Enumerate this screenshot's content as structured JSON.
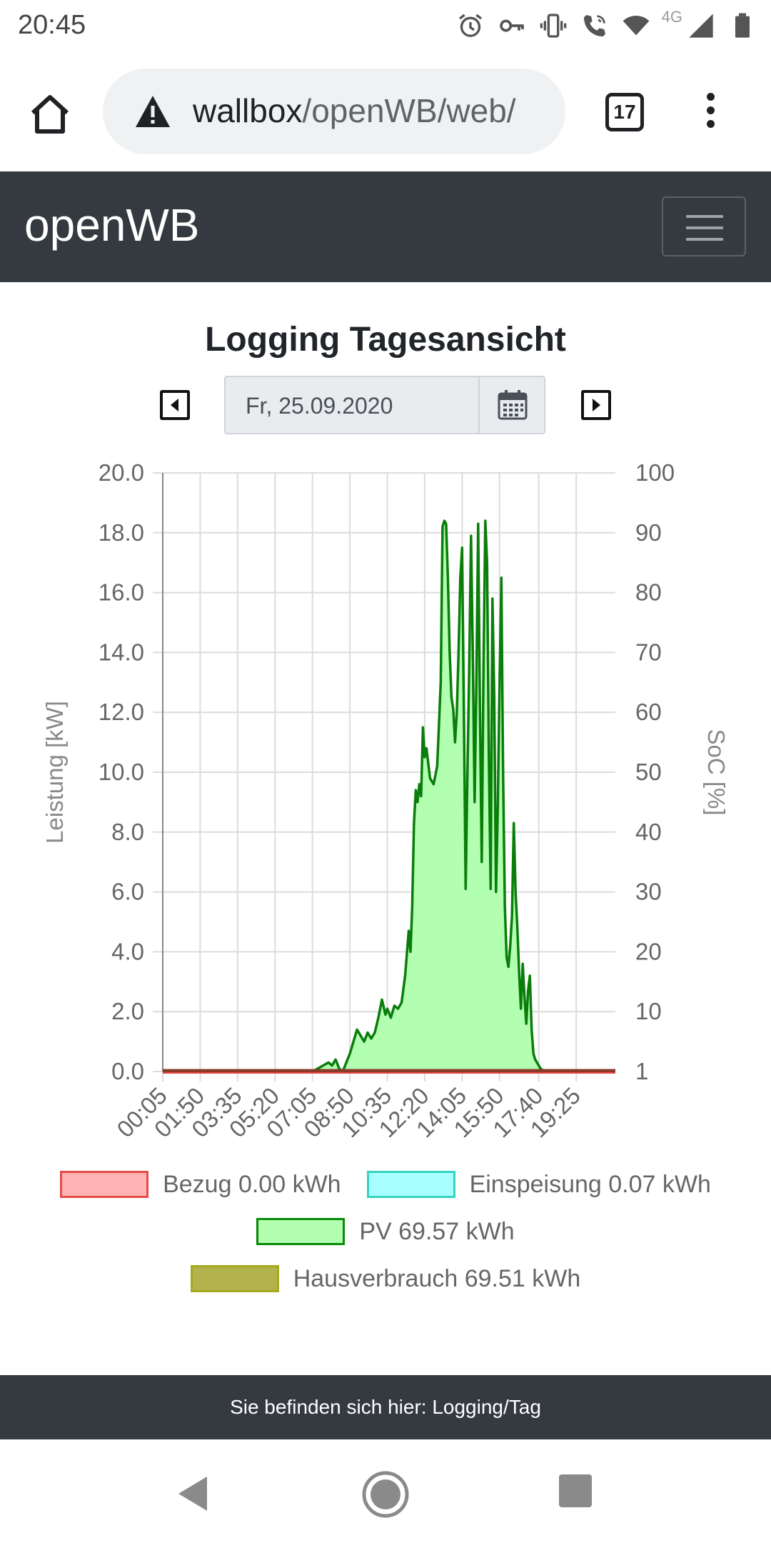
{
  "status_bar": {
    "time": "20:45",
    "network": "4G",
    "icons": [
      "alarm-icon",
      "vpn-key-icon",
      "vibrate-icon",
      "wifi-calling-icon",
      "wifi-icon",
      "signal-icon",
      "battery-icon"
    ]
  },
  "browser": {
    "url_host": "wallbox",
    "url_path": "/openWB/web/",
    "tab_count": "17",
    "security_icon": "warning-icon"
  },
  "navbar": {
    "brand": "openWB",
    "toggler_icon": "hamburger-menu-icon"
  },
  "page": {
    "title": "Logging Tagesansicht",
    "date": "Fr, 25.09.2020"
  },
  "chart_data": {
    "type": "line",
    "xlabel": "",
    "ylabel": "Leistung [kW]",
    "y2label": "SoC [%]",
    "ylim": [
      0,
      20
    ],
    "y2lim": [
      1,
      100
    ],
    "y_ticks": [
      "20.0",
      "18.0",
      "16.0",
      "14.0",
      "12.0",
      "10.0",
      "8.0",
      "6.0",
      "4.0",
      "2.0",
      "0.0"
    ],
    "y2_ticks": [
      "100",
      "90",
      "80",
      "70",
      "60",
      "50",
      "40",
      "30",
      "20",
      "10",
      "1"
    ],
    "x_ticks": [
      "00:05",
      "01:50",
      "03:35",
      "05:20",
      "07:05",
      "08:50",
      "10:35",
      "12:20",
      "14:05",
      "15:50",
      "17:40",
      "19:25"
    ],
    "grid": true,
    "legend_position": "bottom",
    "series": [
      {
        "name": "Bezug",
        "color": "#ff0000",
        "fill": "#ffb3b3",
        "x": [
          "00:05",
          "21:00"
        ],
        "values": [
          0.0,
          0.0
        ]
      },
      {
        "name": "Einspeisung",
        "color": "#00ffe1",
        "fill": "#a8ffff",
        "x": [
          "00:05",
          "21:00"
        ],
        "values": [
          0.0,
          0.0
        ]
      },
      {
        "name": "PV",
        "color": "#009900",
        "fill": "#b2ffb2",
        "x": [
          "07:05",
          "07:20",
          "07:35",
          "07:50",
          "08:00",
          "08:10",
          "08:20",
          "08:30",
          "08:40",
          "08:50",
          "09:00",
          "09:10",
          "09:20",
          "09:30",
          "09:40",
          "09:50",
          "10:00",
          "10:10",
          "10:20",
          "10:30",
          "10:35",
          "10:45",
          "10:55",
          "11:05",
          "11:15",
          "11:25",
          "11:35",
          "11:40",
          "11:45",
          "11:50",
          "11:55",
          "12:00",
          "12:05",
          "12:10",
          "12:15",
          "12:20",
          "12:25",
          "12:35",
          "12:45",
          "12:55",
          "13:05",
          "13:10",
          "13:15",
          "13:20",
          "13:25",
          "13:30",
          "13:35",
          "13:40",
          "13:45",
          "13:50",
          "13:55",
          "14:00",
          "14:05",
          "14:10",
          "14:15",
          "14:20",
          "14:25",
          "14:30",
          "14:35",
          "14:40",
          "14:45",
          "14:50",
          "14:55",
          "15:00",
          "15:05",
          "15:10",
          "15:15",
          "15:20",
          "15:25",
          "15:30",
          "15:35",
          "15:40",
          "15:45",
          "15:50",
          "15:55",
          "16:00",
          "16:05",
          "16:10",
          "16:15",
          "16:20",
          "16:25",
          "16:30",
          "16:35",
          "16:40",
          "16:45",
          "16:50",
          "16:55",
          "17:00",
          "17:05",
          "17:10",
          "17:15",
          "17:20",
          "17:25",
          "17:30",
          "17:35",
          "17:40",
          "17:45",
          "17:50",
          "17:55",
          "18:00",
          "18:05",
          "18:10",
          "18:15",
          "18:20",
          "18:30",
          "18:40",
          "18:50",
          "19:00",
          "19:10",
          "19:20",
          "19:25",
          "19:35"
        ],
        "values": [
          0.0,
          0.1,
          0.2,
          0.3,
          0.2,
          0.4,
          0.1,
          0.0,
          0.3,
          0.6,
          1.0,
          1.4,
          1.2,
          1.0,
          1.3,
          1.1,
          1.3,
          1.8,
          2.4,
          1.9,
          2.1,
          1.8,
          2.2,
          2.1,
          2.3,
          3.2,
          4.7,
          4.0,
          5.5,
          8.3,
          9.4,
          9.0,
          9.6,
          9.2,
          11.5,
          10.5,
          10.8,
          9.8,
          9.6,
          10.2,
          13.0,
          18.2,
          18.4,
          18.3,
          16.5,
          14.0,
          12.5,
          12.1,
          11.0,
          12.0,
          14.0,
          16.5,
          17.5,
          12.0,
          6.1,
          10.0,
          13.5,
          17.9,
          14.0,
          9.0,
          13.0,
          18.3,
          12.0,
          7.0,
          13.5,
          18.4,
          17.0,
          10.5,
          6.1,
          15.8,
          12.5,
          6.0,
          8.8,
          13.0,
          16.5,
          10.0,
          5.5,
          3.8,
          3.5,
          4.2,
          5.2,
          8.3,
          6.0,
          4.8,
          3.3,
          2.1,
          3.6,
          2.5,
          1.6,
          2.7,
          3.2,
          1.4,
          0.6,
          0.4,
          0.3,
          0.2,
          0.1,
          0.05,
          0.0,
          0.0,
          0.0,
          0.0,
          0.0,
          0.0,
          0.0,
          0.0,
          0.0,
          0.0,
          0.0,
          0.0,
          0.0,
          0.0
        ]
      },
      {
        "name": "Hausverbrauch",
        "color": "#999900",
        "fill": "#b3b34d",
        "x": [
          "00:05",
          "21:00"
        ],
        "values": [
          0.05,
          0.05
        ]
      }
    ]
  },
  "legend": [
    {
      "label": "Bezug 0.00 kWh",
      "fill": "#ffb3b3",
      "border": "#e84a4a"
    },
    {
      "label": "Einspeisung 0.07 kWh",
      "fill": "#a8ffff",
      "border": "#35d4c0"
    },
    {
      "label": "PV 69.57 kWh",
      "fill": "#b2ffb2",
      "border": "#0a8a0a"
    },
    {
      "label": "Hausverbrauch 69.51 kWh",
      "fill": "#b3b34d",
      "border": "#a8a81e"
    }
  ],
  "footer": {
    "text": "Sie befinden sich hier: Logging/Tag"
  },
  "system_nav": {
    "back": "back-icon",
    "home": "home-circle-icon",
    "recent": "recent-apps-icon"
  }
}
